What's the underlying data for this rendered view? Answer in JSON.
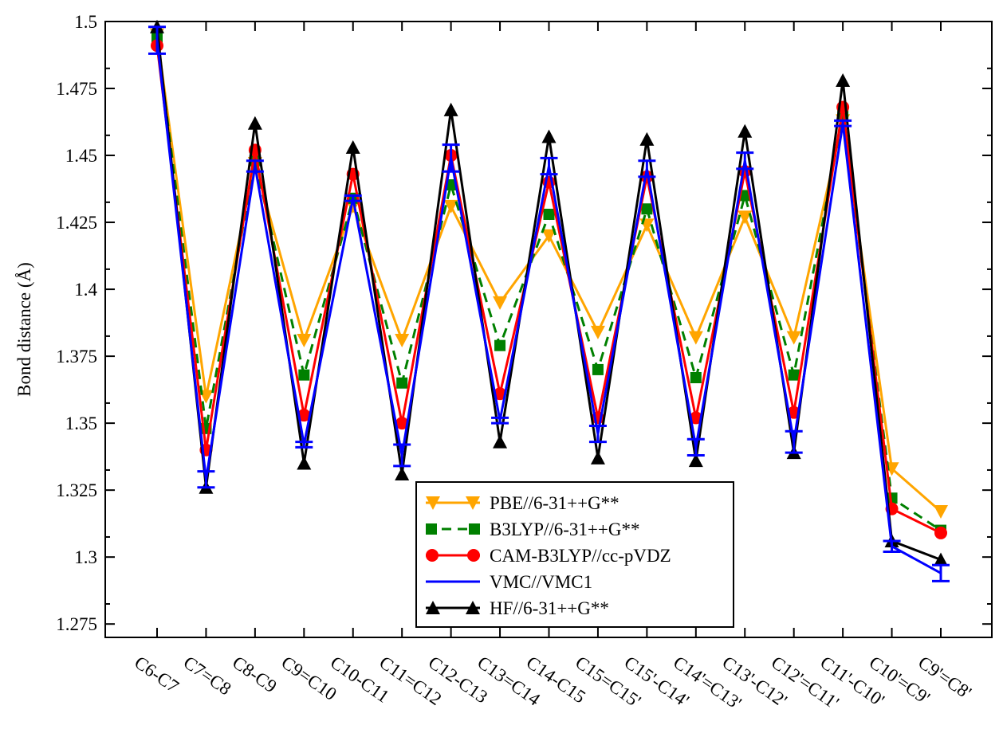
{
  "chart_data": {
    "type": "line",
    "title": "",
    "xlabel": "",
    "ylabel": "Bond distance (Å)",
    "ylim": [
      1.27,
      1.5
    ],
    "yticks": [
      "1.275",
      "1.3",
      "1.325",
      "1.35",
      "1.375",
      "1.4",
      "1.425",
      "1.45",
      "1.475",
      "1.5"
    ],
    "categories": [
      "C6-C7",
      "C7=C8",
      "C8-C9",
      "C9=C10",
      "C10-C11",
      "C11=C12",
      "C12-C13",
      "C13=C14",
      "C14-C15",
      "C15=C15'",
      "C15'-C14'",
      "C14'=C13'",
      "C13'-C12'",
      "C12'=C11'",
      "C11'-C10'",
      "C10'=C9'",
      "C9'=C8'"
    ],
    "legend_position": "bottom-right",
    "grid": false,
    "series": [
      {
        "name": "PBE//6-31++G**",
        "color": "#FFA500",
        "style": "solid",
        "marker": "triangle-down",
        "values": [
          1.495,
          1.36,
          1.447,
          1.381,
          1.431,
          1.381,
          1.431,
          1.395,
          1.42,
          1.384,
          1.424,
          1.382,
          1.427,
          1.382,
          1.463,
          1.333,
          1.317
        ]
      },
      {
        "name": "B3LYP//6-31++G**",
        "color": "#008000",
        "style": "dashed",
        "marker": "square",
        "values": [
          1.494,
          1.348,
          1.448,
          1.368,
          1.434,
          1.365,
          1.439,
          1.379,
          1.428,
          1.37,
          1.43,
          1.367,
          1.435,
          1.368,
          1.465,
          1.322,
          1.31
        ]
      },
      {
        "name": "CAM-B3LYP//cc-pVDZ",
        "color": "#FF0000",
        "style": "solid",
        "marker": "circle",
        "values": [
          1.491,
          1.34,
          1.452,
          1.353,
          1.443,
          1.35,
          1.45,
          1.361,
          1.44,
          1.352,
          1.442,
          1.352,
          1.444,
          1.354,
          1.468,
          1.318,
          1.309
        ]
      },
      {
        "name": "VMC//VMC1",
        "color": "#0000FF",
        "style": "solid",
        "marker": "errorbar",
        "values": [
          1.493,
          1.329,
          1.446,
          1.342,
          1.434,
          1.338,
          1.449,
          1.351,
          1.446,
          1.346,
          1.445,
          1.341,
          1.448,
          1.343,
          1.462,
          1.304,
          1.294
        ],
        "errors": [
          0.005,
          0.003,
          0.002,
          0.001,
          0.001,
          0.004,
          0.005,
          0.001,
          0.003,
          0.003,
          0.003,
          0.003,
          0.003,
          0.004,
          0.001,
          0.002,
          0.003
        ]
      },
      {
        "name": "HF//6-31++G**",
        "color": "#000000",
        "style": "solid",
        "marker": "triangle-up",
        "values": [
          1.498,
          1.326,
          1.462,
          1.335,
          1.453,
          1.331,
          1.467,
          1.343,
          1.457,
          1.337,
          1.456,
          1.336,
          1.459,
          1.339,
          1.478,
          1.306,
          1.299
        ]
      }
    ]
  }
}
